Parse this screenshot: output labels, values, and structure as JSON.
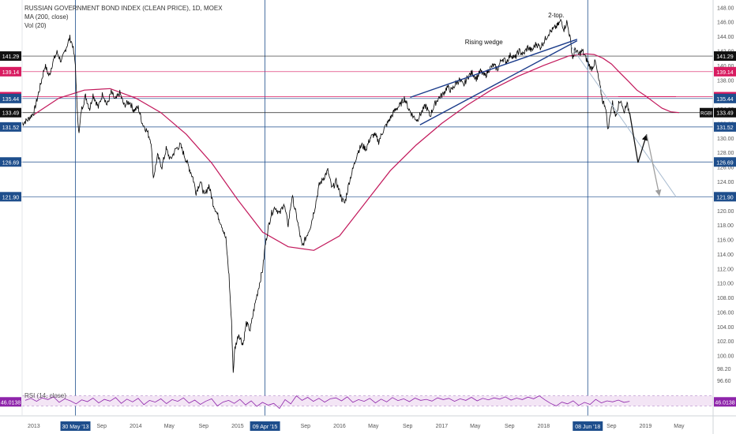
{
  "legend": {
    "title": "RUSSIAN GOVERNMENT BOND INDEX (CLEAN PRICE), 1D, MOEX",
    "ma": "MA (200, close)",
    "vol": "Vol (20)"
  },
  "rsi": {
    "label": "RSI (14, close)",
    "value_tag": "46.0138"
  },
  "colors": {
    "price": "#000000",
    "ma": "#c2185b",
    "hline": "#1e4e8c",
    "red_level": "#d81b60",
    "rsi": "#8e24aa",
    "rsi_band": "#f3e5f5",
    "tag_blue": "#1e4e8c",
    "tag_red": "#d81b60",
    "tag_black": "#111111"
  },
  "chart_data": {
    "type": "line",
    "ylim": [
      95.5,
      148.8
    ],
    "right_axis_ticks": [
      "148.00",
      "146.00",
      "144.00",
      "142.00",
      "140.00",
      "138.00",
      "136.00",
      "134.00",
      "132.00",
      "130.00",
      "128.00",
      "126.00",
      "124.00",
      "122.00",
      "120.00",
      "118.00",
      "116.00",
      "114.00",
      "112.00",
      "110.00",
      "108.00",
      "106.00",
      "104.00",
      "102.00",
      "100.00",
      "98.20",
      "96.60"
    ],
    "x_labels": [
      {
        "label": "2013",
        "date": "2013-01-01"
      },
      {
        "label": "Sep",
        "date": "2013-09-01"
      },
      {
        "label": "2014",
        "date": "2014-01-01"
      },
      {
        "label": "May",
        "date": "2014-05-01"
      },
      {
        "label": "Sep",
        "date": "2014-09-01"
      },
      {
        "label": "2015",
        "date": "2015-01-01"
      },
      {
        "label": "Sep",
        "date": "2015-09-01"
      },
      {
        "label": "2016",
        "date": "2016-01-01"
      },
      {
        "label": "May",
        "date": "2016-05-01"
      },
      {
        "label": "Sep",
        "date": "2016-09-01"
      },
      {
        "label": "2017",
        "date": "2017-01-01"
      },
      {
        "label": "May",
        "date": "2017-05-01"
      },
      {
        "label": "Sep",
        "date": "2017-09-01"
      },
      {
        "label": "2018",
        "date": "2018-01-01"
      },
      {
        "label": "Sep",
        "date": "2018-09-01"
      },
      {
        "label": "2019",
        "date": "2019-01-01"
      },
      {
        "label": "May",
        "date": "2019-05-01"
      }
    ],
    "date_tags": [
      {
        "label": "30 May '13",
        "date": "2013-05-30"
      },
      {
        "label": "09 Apr '15",
        "date": "2015-04-09"
      },
      {
        "label": "08 Jun '18",
        "date": "2018-06-08"
      }
    ],
    "hlines": [
      {
        "value": 141.29,
        "tag": "141.29",
        "color": "black"
      },
      {
        "value": 139.14,
        "tag": "139.14",
        "color": "red"
      },
      {
        "value": 135.69,
        "tag": "135.69",
        "color": "red"
      },
      {
        "value": 135.44,
        "tag": "135.44",
        "color": "blue"
      },
      {
        "value": 133.49,
        "tag": "133.49",
        "color": "black"
      },
      {
        "value": 131.52,
        "tag": "131.52",
        "color": "blue"
      },
      {
        "value": 126.69,
        "tag": "126.69",
        "color": "blue"
      },
      {
        "value": 121.9,
        "tag": "121.90",
        "color": "blue"
      }
    ],
    "inner_tag": {
      "label": "RGBI",
      "value": 133.49
    },
    "price_series": [
      [
        "2012-11-20",
        132.0
      ],
      [
        "2012-12-10",
        132.5
      ],
      [
        "2013-01-01",
        133.5
      ],
      [
        "2013-01-20",
        136.5
      ],
      [
        "2013-02-10",
        140.0
      ],
      [
        "2013-02-25",
        138.5
      ],
      [
        "2013-03-10",
        140.5
      ],
      [
        "2013-03-25",
        141.8
      ],
      [
        "2013-04-10",
        140.5
      ],
      [
        "2013-04-25",
        142.3
      ],
      [
        "2013-05-10",
        143.8
      ],
      [
        "2013-05-20",
        142.8
      ],
      [
        "2013-05-30",
        140.0
      ],
      [
        "2013-06-05",
        134.0
      ],
      [
        "2013-06-12",
        130.5
      ],
      [
        "2013-06-20",
        133.8
      ],
      [
        "2013-07-05",
        135.8
      ],
      [
        "2013-07-20",
        134.0
      ],
      [
        "2013-08-01",
        136.0
      ],
      [
        "2013-08-20",
        134.2
      ],
      [
        "2013-09-05",
        136.2
      ],
      [
        "2013-09-20",
        134.5
      ],
      [
        "2013-10-05",
        136.3
      ],
      [
        "2013-10-20",
        135.2
      ],
      [
        "2013-11-05",
        136.2
      ],
      [
        "2013-11-20",
        134.5
      ],
      [
        "2013-12-10",
        135.0
      ],
      [
        "2013-12-25",
        133.8
      ],
      [
        "2014-01-10",
        134.2
      ],
      [
        "2014-01-25",
        132.0
      ],
      [
        "2014-02-10",
        131.0
      ],
      [
        "2014-02-25",
        129.5
      ],
      [
        "2014-03-05",
        124.5
      ],
      [
        "2014-03-20",
        127.5
      ],
      [
        "2014-04-05",
        126.0
      ],
      [
        "2014-04-20",
        128.5
      ],
      [
        "2014-05-05",
        127.0
      ],
      [
        "2014-05-25",
        128.5
      ],
      [
        "2014-06-10",
        129.0
      ],
      [
        "2014-06-25",
        127.5
      ],
      [
        "2014-07-10",
        126.0
      ],
      [
        "2014-07-25",
        124.5
      ],
      [
        "2014-08-05",
        122.5
      ],
      [
        "2014-08-20",
        124.0
      ],
      [
        "2014-09-05",
        122.0
      ],
      [
        "2014-09-20",
        123.5
      ],
      [
        "2014-10-05",
        121.0
      ],
      [
        "2014-10-20",
        119.5
      ],
      [
        "2014-11-05",
        118.0
      ],
      [
        "2014-11-20",
        116.0
      ],
      [
        "2014-12-01",
        111.0
      ],
      [
        "2014-12-10",
        104.5
      ],
      [
        "2014-12-16",
        97.7
      ],
      [
        "2014-12-22",
        101.0
      ],
      [
        "2015-01-05",
        103.0
      ],
      [
        "2015-01-20",
        101.5
      ],
      [
        "2015-02-01",
        104.5
      ],
      [
        "2015-02-15",
        103.5
      ],
      [
        "2015-03-01",
        106.5
      ],
      [
        "2015-03-15",
        109.0
      ],
      [
        "2015-04-01",
        112.0
      ],
      [
        "2015-04-09",
        115.0
      ],
      [
        "2015-04-20",
        117.5
      ],
      [
        "2015-05-01",
        119.5
      ],
      [
        "2015-05-15",
        120.5
      ],
      [
        "2015-06-01",
        119.5
      ],
      [
        "2015-06-15",
        121.0
      ],
      [
        "2015-07-01",
        118.0
      ],
      [
        "2015-07-15",
        122.0
      ],
      [
        "2015-08-01",
        119.0
      ],
      [
        "2015-08-20",
        115.0
      ],
      [
        "2015-09-05",
        116.5
      ],
      [
        "2015-09-20",
        118.0
      ],
      [
        "2015-10-05",
        120.5
      ],
      [
        "2015-10-20",
        123.5
      ],
      [
        "2015-11-05",
        124.5
      ],
      [
        "2015-11-20",
        125.5
      ],
      [
        "2015-12-05",
        123.0
      ],
      [
        "2015-12-20",
        124.0
      ],
      [
        "2016-01-10",
        121.5
      ],
      [
        "2016-01-20",
        121.0
      ],
      [
        "2016-02-05",
        124.0
      ],
      [
        "2016-02-20",
        126.0
      ],
      [
        "2016-03-05",
        128.0
      ],
      [
        "2016-03-20",
        129.0
      ],
      [
        "2016-04-05",
        128.5
      ],
      [
        "2016-04-20",
        130.0
      ],
      [
        "2016-05-05",
        130.5
      ],
      [
        "2016-05-20",
        129.5
      ],
      [
        "2016-06-05",
        131.0
      ],
      [
        "2016-06-20",
        132.0
      ],
      [
        "2016-07-05",
        133.0
      ],
      [
        "2016-07-20",
        134.0
      ],
      [
        "2016-08-05",
        134.5
      ],
      [
        "2016-08-20",
        135.5
      ],
      [
        "2016-09-05",
        134.0
      ],
      [
        "2016-09-20",
        133.0
      ],
      [
        "2016-10-05",
        132.5
      ],
      [
        "2016-10-20",
        133.5
      ],
      [
        "2016-11-05",
        134.5
      ],
      [
        "2016-11-20",
        133.0
      ],
      [
        "2016-12-05",
        134.5
      ],
      [
        "2016-12-20",
        135.5
      ],
      [
        "2017-01-05",
        136.0
      ],
      [
        "2017-01-20",
        137.0
      ],
      [
        "2017-02-05",
        136.5
      ],
      [
        "2017-02-20",
        137.5
      ],
      [
        "2017-03-05",
        138.0
      ],
      [
        "2017-03-20",
        137.2
      ],
      [
        "2017-04-05",
        138.5
      ],
      [
        "2017-04-20",
        139.0
      ],
      [
        "2017-05-05",
        138.2
      ],
      [
        "2017-05-20",
        139.2
      ],
      [
        "2017-06-05",
        138.5
      ],
      [
        "2017-06-20",
        139.5
      ],
      [
        "2017-07-05",
        140.0
      ],
      [
        "2017-07-20",
        139.5
      ],
      [
        "2017-08-05",
        141.0
      ],
      [
        "2017-08-20",
        140.5
      ],
      [
        "2017-09-05",
        141.5
      ],
      [
        "2017-09-20",
        141.0
      ],
      [
        "2017-10-05",
        142.0
      ],
      [
        "2017-10-20",
        141.5
      ],
      [
        "2017-11-05",
        142.5
      ],
      [
        "2017-11-20",
        142.0
      ],
      [
        "2017-12-05",
        143.0
      ],
      [
        "2017-12-20",
        142.5
      ],
      [
        "2018-01-05",
        143.5
      ],
      [
        "2018-01-20",
        144.5
      ],
      [
        "2018-02-05",
        145.0
      ],
      [
        "2018-02-20",
        145.5
      ],
      [
        "2018-03-05",
        146.2
      ],
      [
        "2018-03-15",
        145.0
      ],
      [
        "2018-03-25",
        146.0
      ],
      [
        "2018-04-05",
        144.0
      ],
      [
        "2018-04-15",
        141.0
      ],
      [
        "2018-04-25",
        142.3
      ],
      [
        "2018-05-05",
        141.5
      ],
      [
        "2018-05-20",
        142.0
      ],
      [
        "2018-06-01",
        141.0
      ],
      [
        "2018-06-08",
        140.5
      ],
      [
        "2018-06-20",
        139.5
      ],
      [
        "2018-07-05",
        140.5
      ],
      [
        "2018-07-20",
        137.5
      ],
      [
        "2018-08-01",
        135.0
      ],
      [
        "2018-08-10",
        134.5
      ],
      [
        "2018-08-20",
        131.0
      ],
      [
        "2018-08-28",
        133.5
      ],
      [
        "2018-09-05",
        134.8
      ],
      [
        "2018-09-15",
        133.0
      ],
      [
        "2018-09-25",
        134.5
      ],
      [
        "2018-10-05",
        135.3
      ],
      [
        "2018-10-15",
        133.5
      ],
      [
        "2018-10-25",
        134.8
      ],
      [
        "2018-11-05",
        133.5
      ]
    ],
    "ma_series": [
      [
        "2013-01-01",
        133.2
      ],
      [
        "2013-04-01",
        135.5
      ],
      [
        "2013-07-01",
        136.6
      ],
      [
        "2013-10-01",
        136.8
      ],
      [
        "2014-01-01",
        135.5
      ],
      [
        "2014-04-01",
        133.5
      ],
      [
        "2014-07-01",
        130.5
      ],
      [
        "2014-10-01",
        126.5
      ],
      [
        "2015-01-01",
        121.5
      ],
      [
        "2015-04-01",
        117.0
      ],
      [
        "2015-07-01",
        115.0
      ],
      [
        "2015-10-01",
        114.5
      ],
      [
        "2016-01-01",
        116.5
      ],
      [
        "2016-04-01",
        121.0
      ],
      [
        "2016-07-01",
        125.5
      ],
      [
        "2016-10-01",
        129.0
      ],
      [
        "2017-01-01",
        132.0
      ],
      [
        "2017-04-01",
        134.5
      ],
      [
        "2017-07-01",
        136.7
      ],
      [
        "2017-10-01",
        138.5
      ],
      [
        "2018-01-01",
        140.0
      ],
      [
        "2018-04-01",
        141.3
      ],
      [
        "2018-06-01",
        141.6
      ],
      [
        "2018-07-01",
        141.5
      ],
      [
        "2018-08-01",
        141.0
      ],
      [
        "2018-09-01",
        140.2
      ],
      [
        "2018-10-01",
        139.0
      ],
      [
        "2018-11-01",
        137.8
      ],
      [
        "2018-12-01",
        136.6
      ],
      [
        "2019-01-01",
        135.8
      ],
      [
        "2019-02-01",
        134.9
      ],
      [
        "2019-03-01",
        134.1
      ],
      [
        "2019-04-01",
        133.6
      ],
      [
        "2019-05-01",
        133.5
      ]
    ],
    "annotations": [
      {
        "type": "text",
        "text": "2-top.",
        "date": "2018-02-15",
        "value": 146.6
      },
      {
        "type": "text",
        "text": "Rising wedge",
        "date": "2017-06-01",
        "value": 142.9
      },
      {
        "type": "line",
        "color": "navy",
        "from": [
          "2016-09-10",
          135.6
        ],
        "to": [
          "2018-05-01",
          143.6
        ]
      },
      {
        "type": "line",
        "color": "navy",
        "from": [
          "2016-10-15",
          131.8
        ],
        "to": [
          "2018-05-01",
          143.4
        ]
      },
      {
        "type": "line",
        "color": "silver",
        "from": [
          "2018-04-10",
          142.6
        ],
        "to": [
          "2019-04-20",
          121.9
        ]
      },
      {
        "type": "line",
        "color": "red",
        "from": [
          "2018-09-25",
          135.69
        ],
        "to": [
          "2019-04-20",
          135.69
        ]
      },
      {
        "type": "arrowpath",
        "color": "black",
        "points": [
          [
            "2018-11-05",
            133.5
          ],
          [
            "2018-12-05",
            126.6
          ],
          [
            "2019-01-05",
            130.5
          ]
        ]
      },
      {
        "type": "arrowpath",
        "color": "gray",
        "points": [
          [
            "2019-01-05",
            130.5
          ],
          [
            "2019-02-20",
            122.0
          ]
        ]
      }
    ],
    "rsi_series": [
      52,
      60,
      48,
      62,
      55,
      66,
      44,
      58,
      50,
      38,
      54,
      47,
      61,
      42,
      56,
      49,
      63,
      40,
      57,
      46,
      60,
      35,
      52,
      45,
      58,
      39,
      55,
      48,
      62,
      41,
      53,
      36,
      49,
      58,
      30,
      45,
      52,
      40,
      56,
      34,
      50,
      28,
      44,
      33,
      40,
      20,
      55,
      38,
      70,
      52,
      64,
      48,
      60,
      45,
      58,
      62,
      50,
      66,
      44,
      55,
      48,
      60,
      42,
      57,
      46,
      63,
      51,
      58,
      47,
      61,
      52,
      56,
      49,
      62,
      55,
      60,
      48,
      58,
      52,
      64,
      50,
      60,
      54,
      62,
      57,
      66,
      53,
      61,
      55,
      65,
      58,
      70,
      54,
      40,
      30,
      45,
      38,
      50,
      32,
      44,
      36,
      56,
      42,
      50,
      46,
      53,
      44,
      48
    ],
    "rsi_band": [
      30,
      70
    ]
  }
}
